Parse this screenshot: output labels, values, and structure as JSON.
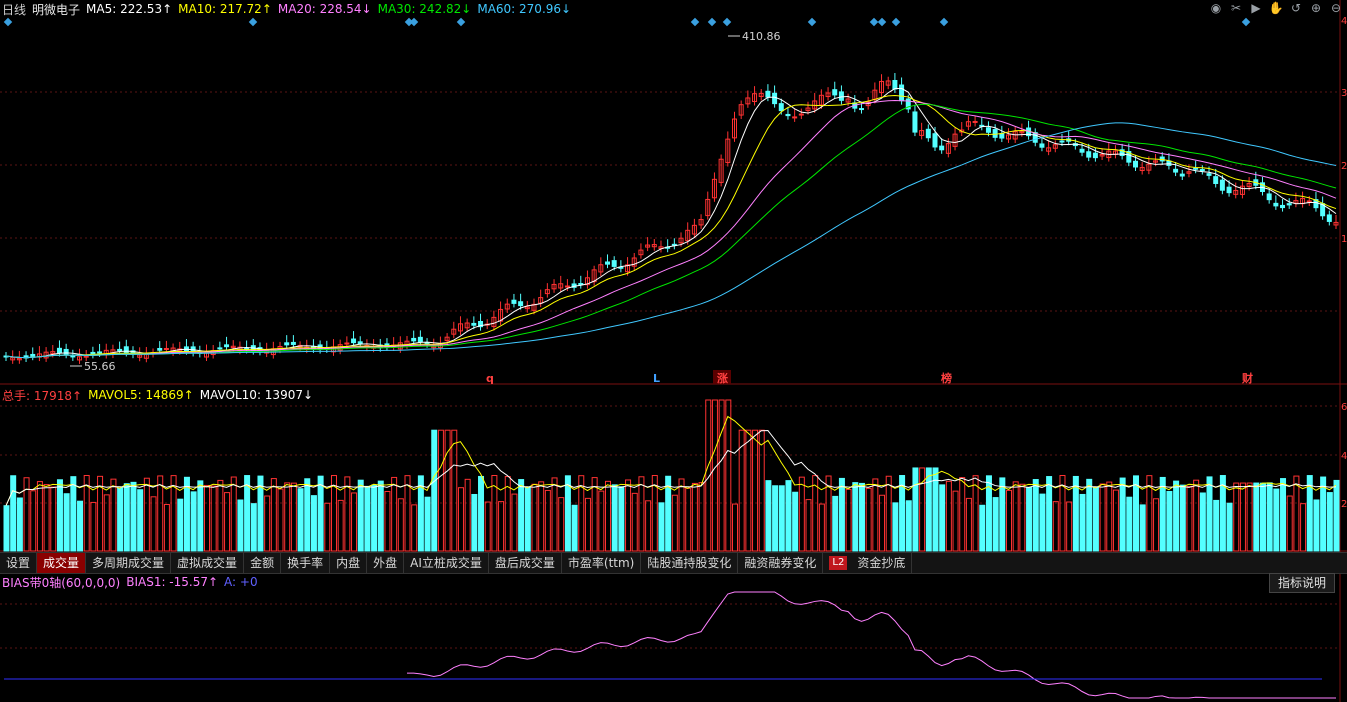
{
  "header": {
    "period": "日线",
    "stock_name": "明微电子",
    "ma5_label": "MA5: 222.53↑",
    "ma10_label": "MA10: 217.72↑",
    "ma20_label": "MA20: 228.54↓",
    "ma30_label": "MA30: 242.82↓",
    "ma60_label": "MA60: 270.96↓"
  },
  "toolbar_icons": [
    "eye-icon",
    "scissors-icon",
    "play-icon",
    "hand-icon",
    "undo-icon",
    "zoom-in-icon",
    "zoom-out-icon"
  ],
  "price_chart": {
    "high_label": "410.86",
    "low_label": "55.66",
    "event_markers": [
      {
        "text": "q",
        "color": "#ff4040"
      },
      {
        "text": "L",
        "color": "#40a0ff"
      },
      {
        "text": "涨",
        "color": "#ff4040"
      },
      {
        "text": "榜",
        "color": "#ff4040"
      },
      {
        "text": "财",
        "color": "#ff4040"
      }
    ],
    "right_axis_ticks": [
      "4",
      "3",
      "2",
      "1"
    ]
  },
  "volume_header": {
    "total_label": "总手: 17918↑",
    "mavol5_label": "MAVOL5: 14869↑",
    "mavol10_label": "MAVOL10: 13907↓"
  },
  "volume_axis_ticks": [
    "6",
    "4",
    "2"
  ],
  "tabs": [
    {
      "label": "设置",
      "active": false
    },
    {
      "label": "成交量",
      "active": true
    },
    {
      "label": "多周期成交量",
      "active": false
    },
    {
      "label": "虚拟成交量",
      "active": false
    },
    {
      "label": "金额",
      "active": false
    },
    {
      "label": "换手率",
      "active": false
    },
    {
      "label": "内盘",
      "active": false
    },
    {
      "label": "外盘",
      "active": false
    },
    {
      "label": "AI立桩成交量",
      "active": false
    },
    {
      "label": "盘后成交量",
      "active": false
    },
    {
      "label": "市盈率(ttm)",
      "active": false
    },
    {
      "label": "陆股通持股变化",
      "active": false
    },
    {
      "label": "融资融券变化",
      "active": false
    }
  ],
  "l2_badge": "L2",
  "l2_tab": "资金抄底",
  "bias_header": {
    "title": "BIAS带0轴(60,0,0,0)",
    "bias1_label": "BIAS1: -15.57↑",
    "a_label": "A: +0"
  },
  "explain_button": "指标说明",
  "colors": {
    "up": "#ff3232",
    "down": "#54ffff",
    "ma5": "#ffffff",
    "ma10": "#ffff00",
    "ma20": "#ff80ff",
    "ma30": "#00e600",
    "ma60": "#40c8ff",
    "bias": "#ff80ff",
    "zero_line": "#3030ff"
  }
}
